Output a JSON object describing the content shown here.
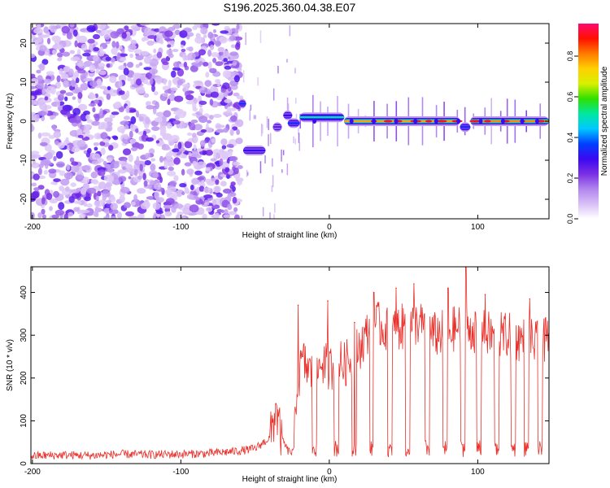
{
  "title": "S196.2025.360.04.38.E07",
  "chart_data": [
    {
      "type": "heatmap",
      "title": "S196.2025.360.04.38.E07",
      "xlabel": "Height of straight line (km)",
      "ylabel": "Frequency (Hz)",
      "xlim": [
        -201,
        148
      ],
      "ylim": [
        -25,
        25
      ],
      "xticks": [
        -200,
        -100,
        0,
        100
      ],
      "yticks": [
        -20,
        -10,
        0,
        10,
        20
      ],
      "xticklabels": [
        "-200",
        "-100",
        "0",
        "100"
      ],
      "yticklabels": [
        "-20",
        "-10",
        "0",
        "10",
        "20"
      ],
      "grid": false,
      "colorbar": {
        "label": "Normalized spectral amplitude",
        "range": [
          0,
          0.96
        ],
        "ticks": [
          0.0,
          0.2,
          0.4,
          0.6,
          0.8
        ],
        "ticklabels": [
          "0.0",
          "0.2",
          "0.4",
          "0.6",
          "0.8"
        ],
        "colormap": [
          "#ffffff",
          "#d8bff6",
          "#b084ee",
          "#7a2ee4",
          "#3a08f2",
          "#0040ff",
          "#00c8ff",
          "#00e8a0",
          "#30e000",
          "#d8f000",
          "#ffd000",
          "#ff7a00",
          "#ff1000",
          "#ff0a70"
        ]
      },
      "features": {
        "noise_region_x": [
          -201,
          -60
        ],
        "sparse_region_x": [
          -60,
          -20
        ],
        "tone_region_x": [
          -20,
          148
        ],
        "tone_frequency_hz": 0,
        "segments": [
          {
            "x0": -61,
            "x1": -56,
            "y": 4.5,
            "amp": 0.35
          },
          {
            "x0": -58,
            "x1": -43,
            "y": -7.5,
            "amp": 0.3
          },
          {
            "x0": -38,
            "x1": -32,
            "y": -1.5,
            "amp": 0.25
          },
          {
            "x0": -31,
            "x1": -25,
            "y": 1.5,
            "amp": 0.3
          },
          {
            "x0": -28,
            "x1": -20,
            "y": -0.5,
            "amp": 0.35
          },
          {
            "x0": -20,
            "x1": 10,
            "y": 1,
            "amp": 0.5
          },
          {
            "x0": 10,
            "x1": 88,
            "y": 0,
            "amp": 0.78
          },
          {
            "x0": 88,
            "x1": 95,
            "y": -1.5,
            "amp": 0.35
          },
          {
            "x0": 95,
            "x1": 148,
            "y": 0,
            "amp": 0.8
          }
        ],
        "gaps_x": [
          -10,
          15,
          30,
          45,
          58,
          72,
          87,
          102,
          117,
          130,
          140
        ]
      }
    },
    {
      "type": "line",
      "xlabel": "Height of straight line (km)",
      "ylabel": "SNR (10 * v/v)",
      "xlim": [
        -201,
        148
      ],
      "ylim": [
        0,
        460
      ],
      "xticks": [
        -200,
        -100,
        0,
        100
      ],
      "yticks": [
        0,
        100,
        200,
        300,
        400
      ],
      "xticklabels": [
        "-200",
        "-100",
        "0",
        "100"
      ],
      "yticklabels": [
        "0",
        "100",
        "200",
        "300",
        "400"
      ],
      "grid": false,
      "series": [
        {
          "color": "#e8302a",
          "x": [
            -200,
            -180,
            -160,
            -140,
            -120,
            -100,
            -80,
            -60,
            -50,
            -40,
            -36,
            -32,
            -28,
            -24,
            -22,
            -18,
            -10,
            -5,
            0,
            5,
            10,
            15,
            20,
            25,
            30,
            40,
            50,
            60,
            70,
            80,
            90,
            100,
            110,
            120,
            130,
            140,
            148
          ],
          "y": [
            18,
            20,
            19,
            22,
            21,
            22,
            24,
            30,
            35,
            60,
            120,
            60,
            30,
            25,
            180,
            240,
            200,
            240,
            220,
            240,
            230,
            250,
            270,
            300,
            330,
            310,
            320,
            330,
            300,
            310,
            320,
            310,
            300,
            300,
            290,
            280,
            290
          ],
          "peaks": [
            {
              "x": -36,
              "y": 140
            },
            {
              "x": -21,
              "y": 370
            },
            {
              "x": -18,
              "y": 250
            },
            {
              "x": -1,
              "y": 380
            },
            {
              "x": 17,
              "y": 330
            },
            {
              "x": 30,
              "y": 400
            },
            {
              "x": 45,
              "y": 410
            },
            {
              "x": 57,
              "y": 420
            },
            {
              "x": 80,
              "y": 410
            },
            {
              "x": 92,
              "y": 460
            },
            {
              "x": 105,
              "y": 395
            },
            {
              "x": 135,
              "y": 385
            }
          ],
          "dropouts_x": [
            -10,
            5,
            17,
            29,
            41,
            53,
            66,
            78,
            90,
            101,
            113,
            124,
            133,
            142
          ]
        }
      ]
    }
  ]
}
